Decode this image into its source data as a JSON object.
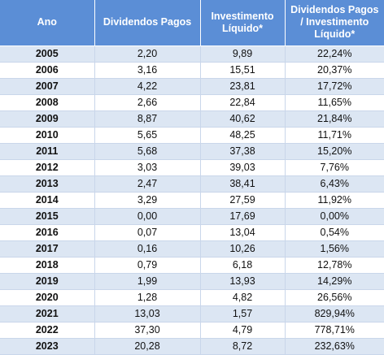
{
  "table": {
    "headers": [
      "Ano",
      "Dividendos Pagos",
      "Investimento Líquido*",
      "Dividendos Pagos / Investimento Líquido*"
    ],
    "rows": [
      [
        "2005",
        "2,20",
        "9,89",
        "22,24%"
      ],
      [
        "2006",
        "3,16",
        "15,51",
        "20,37%"
      ],
      [
        "2007",
        "4,22",
        "23,81",
        "17,72%"
      ],
      [
        "2008",
        "2,66",
        "22,84",
        "11,65%"
      ],
      [
        "2009",
        "8,87",
        "40,62",
        "21,84%"
      ],
      [
        "2010",
        "5,65",
        "48,25",
        "11,71%"
      ],
      [
        "2011",
        "5,68",
        "37,38",
        "15,20%"
      ],
      [
        "2012",
        "3,03",
        "39,03",
        "7,76%"
      ],
      [
        "2013",
        "2,47",
        "38,41",
        "6,43%"
      ],
      [
        "2014",
        "3,29",
        "27,59",
        "11,92%"
      ],
      [
        "2015",
        "0,00",
        "17,69",
        "0,00%"
      ],
      [
        "2016",
        "0,07",
        "13,04",
        "0,54%"
      ],
      [
        "2017",
        "0,16",
        "10,26",
        "1,56%"
      ],
      [
        "2018",
        "0,79",
        "6,18",
        "12,78%"
      ],
      [
        "2019",
        "1,99",
        "13,93",
        "14,29%"
      ],
      [
        "2020",
        "1,28",
        "4,82",
        "26,56%"
      ],
      [
        "2021",
        "13,03",
        "1,57",
        "829,94%"
      ],
      [
        "2022",
        "37,30",
        "4,79",
        "778,71%"
      ],
      [
        "2023",
        "20,28",
        "8,72",
        "232,63%"
      ]
    ]
  }
}
